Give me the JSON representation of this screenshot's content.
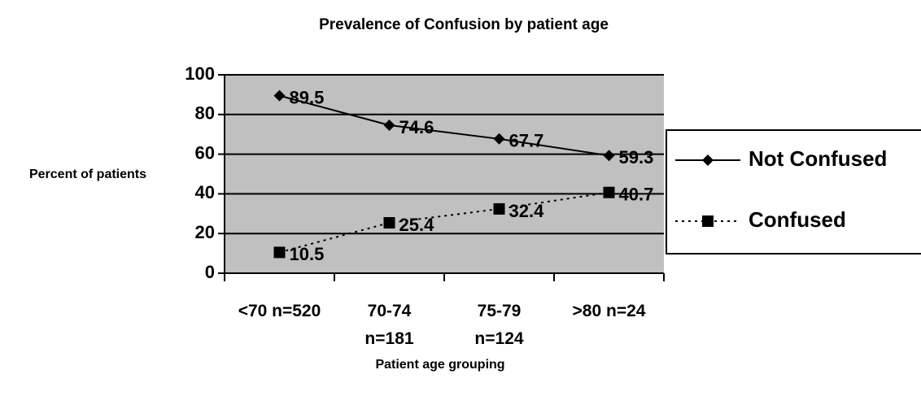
{
  "chart_data": {
    "type": "line",
    "title": "Prevalence of Confusion by patient age",
    "xlabel": "Patient age grouping",
    "ylabel": "Percent of patients",
    "categories": [
      "<70 n=520",
      "70-74 n=181",
      "75-79 n=124",
      ">80 n=24"
    ],
    "series": [
      {
        "name": "Not Confused",
        "color": "#000000",
        "marker": "diamond",
        "line_style": "solid",
        "values": [
          89.5,
          74.6,
          67.7,
          59.3
        ]
      },
      {
        "name": "Confused",
        "color": "#000000",
        "marker": "square",
        "line_style": "dotted",
        "values": [
          10.5,
          25.4,
          32.4,
          40.7
        ]
      }
    ],
    "ylim": [
      0,
      100
    ],
    "yticks": [
      0,
      20,
      40,
      60,
      80,
      100
    ],
    "grid": true,
    "legend": "right",
    "plot_background": "#c0c0c0"
  }
}
